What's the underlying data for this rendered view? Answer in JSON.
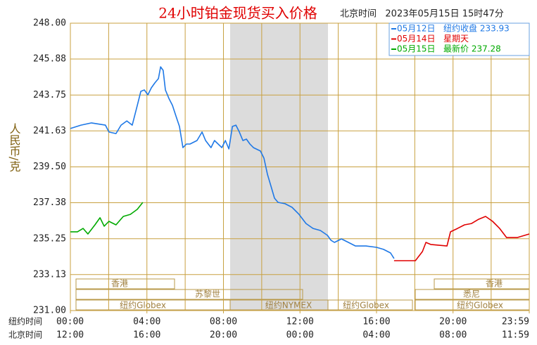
{
  "chart_data": {
    "type": "line",
    "title": "24小时铂金现货买入价格",
    "subtitle": "北京时间   2023年05月15日 15时47分",
    "y_label": "人民币/克",
    "x_label": "纽约时间",
    "x2_label": "北京时间",
    "xlim": [
      0,
      1439
    ],
    "xticks": [
      {
        "value": 0,
        "label": "00:00"
      },
      {
        "value": 240,
        "label": "04:00"
      },
      {
        "value": 480,
        "label": "08:00"
      },
      {
        "value": 720,
        "label": "12:00"
      },
      {
        "value": 960,
        "label": "16:00"
      },
      {
        "value": 1200,
        "label": "20:00"
      },
      {
        "value": 1439,
        "label": "23:59"
      }
    ],
    "x2ticks": [
      {
        "value": 0,
        "label": "12:00"
      },
      {
        "value": 240,
        "label": "16:00"
      },
      {
        "value": 480,
        "label": "20:00"
      },
      {
        "value": 720,
        "label": "00:00"
      },
      {
        "value": 960,
        "label": "04:00"
      },
      {
        "value": 1200,
        "label": "08:00"
      },
      {
        "value": 1439,
        "label": "11:59"
      }
    ],
    "ylim": [
      231,
      248
    ],
    "yticks": [
      {
        "value": 231,
        "label": "231.00"
      },
      {
        "value": 233.13,
        "label": "233.13"
      },
      {
        "value": 235.25,
        "label": "235.25"
      },
      {
        "value": 237.38,
        "label": "237.38"
      },
      {
        "value": 239.5,
        "label": "239.50"
      },
      {
        "value": 241.63,
        "label": "241.63"
      },
      {
        "value": 243.75,
        "label": "243.75"
      },
      {
        "value": 245.88,
        "label": "245.88"
      },
      {
        "value": 248,
        "label": "248.00"
      }
    ],
    "grid": true,
    "sessions": [
      "香港",
      "苏黎世",
      "纽约Globex",
      "纽约NYMEX",
      "纽约Globex",
      "香港",
      "悉尼",
      "纽约Globex"
    ],
    "series": [
      {
        "name": "05月12日",
        "note": "纽约收盘 233.93",
        "color": "#1e78e6",
        "x": [
          0,
          33,
          66,
          110,
          121,
          143,
          159,
          177,
          194,
          210,
          221,
          232,
          243,
          254,
          265,
          276,
          283,
          291,
          298,
          309,
          320,
          331,
          342,
          353,
          364,
          375,
          397,
          413,
          424,
          441,
          452,
          475,
          486,
          497,
          508,
          519,
          530,
          541,
          552,
          563,
          574,
          596,
          607,
          618,
          629,
          640,
          651,
          673,
          695,
          717,
          739,
          761,
          784,
          806,
          817,
          828,
          850,
          872,
          894,
          927,
          960,
          982,
          1004,
          1015
        ],
        "values": [
          241.77,
          241.97,
          242.1,
          241.97,
          241.56,
          241.47,
          241.97,
          242.22,
          241.97,
          243.14,
          243.97,
          244.05,
          243.76,
          244.18,
          244.47,
          244.72,
          245.42,
          245.21,
          244.05,
          243.55,
          243.14,
          242.51,
          241.89,
          240.64,
          240.85,
          240.85,
          241.06,
          241.56,
          241.06,
          240.64,
          241.06,
          240.64,
          241.06,
          240.56,
          241.89,
          241.97,
          241.56,
          241.06,
          241.14,
          240.85,
          240.64,
          240.44,
          240.02,
          239.06,
          238.36,
          237.65,
          237.4,
          237.32,
          237.11,
          236.69,
          236.15,
          235.86,
          235.74,
          235.45,
          235.16,
          235.03,
          235.24,
          235.03,
          234.82,
          234.82,
          234.74,
          234.62,
          234.41,
          234.08
        ]
      },
      {
        "name": "05月14日",
        "note": "星期天",
        "color": "#e00000",
        "x": [
          1015,
          1082,
          1104,
          1115,
          1130,
          1181,
          1192,
          1214,
          1236,
          1258,
          1280,
          1302,
          1324,
          1346,
          1368,
          1401,
          1439
        ],
        "values": [
          233.95,
          233.95,
          234.49,
          235.03,
          234.91,
          234.82,
          235.66,
          235.86,
          236.07,
          236.15,
          236.4,
          236.57,
          236.28,
          235.86,
          235.32,
          235.32,
          235.53
        ]
      },
      {
        "name": "05月15日",
        "note": "最新价 237.28",
        "color": "#00aa00",
        "x": [
          0,
          22,
          40,
          55,
          77,
          93,
          106,
          121,
          143,
          166,
          188,
          210,
          227
        ],
        "values": [
          235.66,
          235.66,
          235.86,
          235.53,
          236.07,
          236.49,
          235.99,
          236.28,
          236.07,
          236.57,
          236.69,
          236.99,
          237.4
        ]
      }
    ]
  }
}
